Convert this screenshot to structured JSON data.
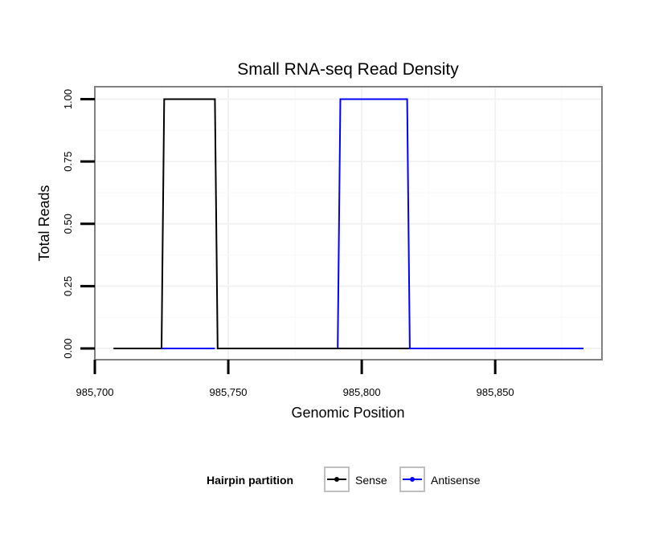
{
  "chart_data": {
    "type": "line",
    "title": "Small RNA-seq Read Density",
    "xlabel": "Genomic Position",
    "ylabel": "Total Reads",
    "xlim": [
      985700,
      985890
    ],
    "ylim": [
      -0.045,
      1.05
    ],
    "x_ticks": [
      985700,
      985750,
      985800,
      985850
    ],
    "x_tick_labels": [
      "985,700",
      "985,750",
      "985,800",
      "985,850"
    ],
    "y_ticks": [
      0,
      0.25,
      0.5,
      0.75,
      1.0
    ],
    "y_tick_labels": [
      "0.00",
      "0.25",
      "0.50",
      "0.75",
      "1.00"
    ],
    "grid": true,
    "legend": {
      "title": "Hairpin partition",
      "placement": "bottom",
      "entries": [
        "Sense",
        "Antisense"
      ]
    },
    "series": [
      {
        "name": "Sense",
        "color": "#000000",
        "x": [
          985707,
          985725,
          985726,
          985745,
          985746,
          985883
        ],
        "y": [
          0,
          0,
          1,
          1,
          0,
          0
        ]
      },
      {
        "name": "Antisense",
        "color": "#0000ff",
        "x": [
          985725,
          985745,
          985745.5,
          985791,
          985792,
          985817,
          985818,
          985883
        ],
        "y": [
          0,
          0,
          null,
          0,
          1,
          1,
          0,
          0
        ]
      }
    ]
  }
}
